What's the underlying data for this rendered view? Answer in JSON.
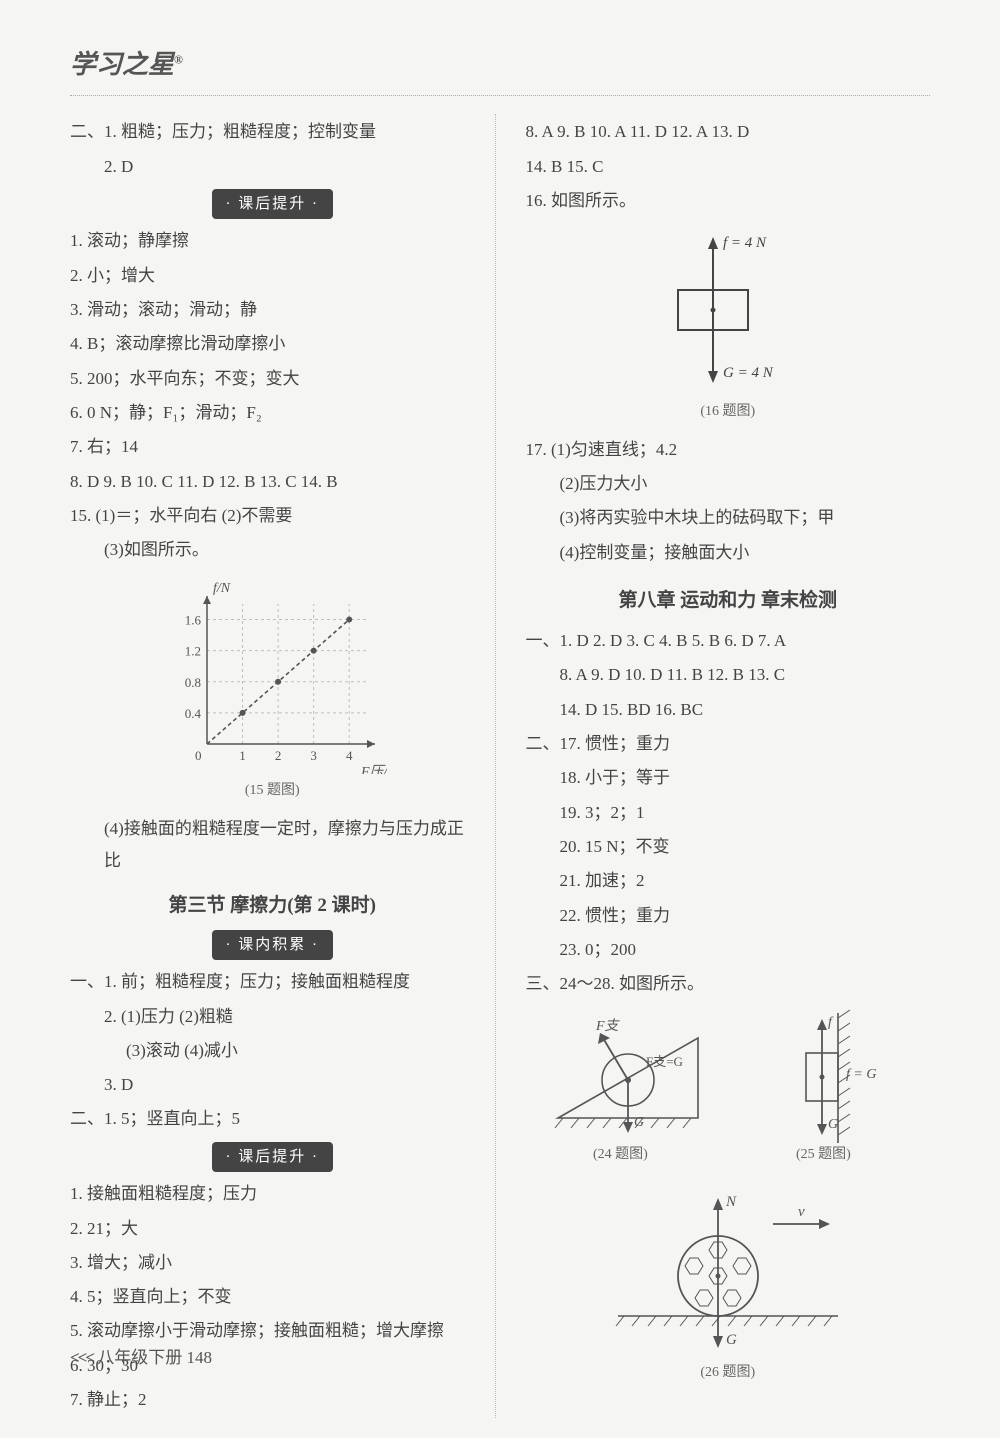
{
  "header": {
    "brand": "学习之星",
    "sup": "®"
  },
  "left": {
    "top": [
      "二、1. 粗糙；压力；粗糙程度；控制变量",
      "2. D"
    ],
    "pill1": "· 课后提升 ·",
    "block1": [
      "1. 滚动；静摩擦",
      "2. 小；增大",
      "3. 滑动；滚动；滑动；静",
      "4. B；滚动摩擦比滑动摩擦小",
      "5. 200；水平向东；不变；变大",
      "6. 0 N；静；F₁；滑动；F₂",
      "7. 右；14",
      "8. D  9. B  10. C  11. D  12. B  13. C  14. B",
      "15. (1)＝；水平向右  (2)不需要",
      "(3)如图所示。"
    ],
    "fig15": {
      "caption": "(15 题图)",
      "xlabel": "F压/N",
      "ylabel": "f/N",
      "xticks": [
        0,
        1,
        2,
        3,
        4
      ],
      "yticks": [
        0,
        0.4,
        0.8,
        1.2,
        1.6
      ],
      "points": [
        [
          1,
          0.4
        ],
        [
          2,
          0.8
        ],
        [
          3,
          1.2
        ],
        [
          4,
          1.6
        ]
      ],
      "axis_color": "#555",
      "grid_color": "#bfbfbf",
      "bg": "#f5f5f3"
    },
    "after15": "(4)接触面的粗糙程度一定时，摩擦力与压力成正比",
    "section_title": "第三节  摩擦力(第 2 课时)",
    "pill2": "· 课内积累 ·",
    "block2": [
      "一、1. 前；粗糙程度；压力；接触面粗糙程度",
      "2. (1)压力  (2)粗糙",
      "(3)滚动  (4)减小",
      "3. D",
      "二、1. 5；竖直向上；5"
    ],
    "pill3": "· 课后提升 ·",
    "block3": [
      "1. 接触面粗糙程度；压力",
      "2. 21；大",
      "3. 增大；减小",
      "4. 5；竖直向上；不变",
      "5. 滚动摩擦小于滑动摩擦；接触面粗糙；增大摩擦",
      "6. 30；30",
      "7. 静止；2"
    ]
  },
  "right": {
    "top": [
      "8. A  9. B  10. A  11. D  12. A  13. D",
      "14. B  15. C",
      "16. 如图所示。"
    ],
    "fig16": {
      "caption": "(16 题图)",
      "f_label": "f = 4 N",
      "g_label": "G = 4 N",
      "line_color": "#444"
    },
    "after16": [
      "17. (1)匀速直线；4.2",
      "(2)压力大小",
      "(3)将丙实验中木块上的砝码取下；甲",
      "(4)控制变量；接触面大小"
    ],
    "chapter_title": "第八章  运动和力  章末检测",
    "block_ch": [
      "一、1. D  2. D  3. C  4. B  5. B  6. D  7. A",
      "8. A  9. D  10. D  11. B  12. B  13. C",
      "14. D  15. BD  16. BC",
      "二、17. 惯性；重力",
      "18. 小于；等于",
      "19. 3；2；1",
      "20. 15 N；不变",
      "21. 加速；2",
      "22. 惯性；重力",
      "23. 0；200",
      "三、24～28. 如图所示。"
    ],
    "fig24": {
      "caption": "(24 题图)",
      "labels": {
        "Fz": "F支",
        "eq": "F支=G",
        "G": "G"
      }
    },
    "fig25": {
      "caption": "(25 题图)",
      "labels": {
        "f": "f",
        "fg": "f = G",
        "G": "G"
      }
    },
    "fig26": {
      "caption": "(26 题图)",
      "labels": {
        "N": "N",
        "v": "v",
        "G": "G"
      }
    },
    "diagram_color": "#555"
  },
  "footer": {
    "chev": "<<<",
    "text": "八年级下册 148"
  }
}
